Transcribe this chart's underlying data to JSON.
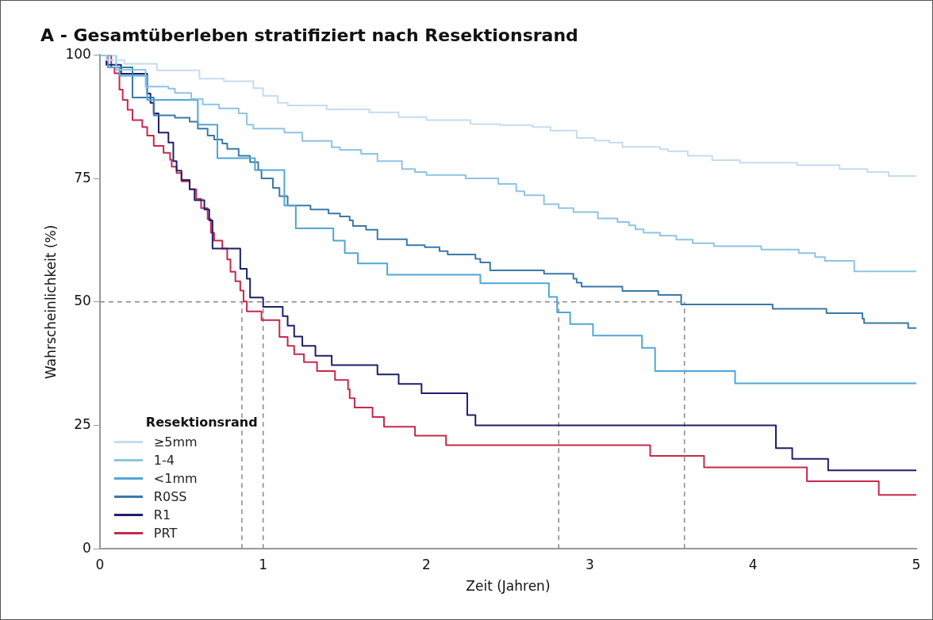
{
  "chart_data": {
    "type": "step",
    "title": "A - Gesamtüberleben stratifiziert nach Resektionsrand",
    "xlabel": "Zeit (Jahren)",
    "ylabel": "Wahrscheinlichkeit (%)",
    "legend_title": "Resektionsrand",
    "legend": "bottom left",
    "grid": false,
    "xlim": [
      0,
      5
    ],
    "xticks": [
      0,
      1,
      2,
      3,
      4,
      5
    ],
    "ylim": [
      0,
      100
    ],
    "yticks": [
      0,
      25,
      50,
      75,
      100
    ],
    "series": [
      {
        "name": "≥5mm",
        "color": "#c6dcee",
        "x": [
          0,
          0.04,
          0.15,
          0.35,
          0.61,
          0.76,
          0.94,
          1.0,
          1.09,
          1.15,
          1.39,
          1.65,
          1.83,
          2.0,
          2.27,
          2.45,
          2.65,
          2.76,
          2.92,
          3.03,
          3.12,
          3.2,
          3.43,
          3.48,
          3.6,
          3.75,
          3.92,
          4.27,
          4.53,
          4.7,
          4.83,
          5
        ],
        "values": [
          100,
          99,
          98.2,
          96.9,
          95.2,
          94.7,
          93.3,
          91.7,
          90.3,
          89.8,
          89.0,
          88.4,
          87.4,
          86.8,
          86.0,
          85.8,
          85.4,
          84.7,
          83.2,
          82.7,
          82.3,
          81.4,
          80.9,
          80.5,
          79.6,
          78.7,
          78.2,
          77.7,
          76.9,
          76.3,
          75.5,
          75.5
        ]
      },
      {
        "name": "1-4",
        "color": "#8ec4e2",
        "x": [
          0,
          0.1,
          0.28,
          0.42,
          0.46,
          0.56,
          0.63,
          0.73,
          0.85,
          0.9,
          0.94,
          1.13,
          1.24,
          1.42,
          1.47,
          1.6,
          1.7,
          1.85,
          1.93,
          2.0,
          2.24,
          2.44,
          2.55,
          2.6,
          2.72,
          2.81,
          2.9,
          3.05,
          3.17,
          3.24,
          3.28,
          3.33,
          3.43,
          3.53,
          3.63,
          3.76,
          4.05,
          4.28,
          4.38,
          4.44,
          4.62,
          5
        ],
        "values": [
          100,
          97,
          93.6,
          93.2,
          92.3,
          91.1,
          90.0,
          89.2,
          88.2,
          85.9,
          85.1,
          84.3,
          82.6,
          81.3,
          80.8,
          80.0,
          78.5,
          76.9,
          76.3,
          75.7,
          75.0,
          73.9,
          72.4,
          71.6,
          69.8,
          69.0,
          68.2,
          66.9,
          66.2,
          65.5,
          64.7,
          64.0,
          63.4,
          62.6,
          61.9,
          61.3,
          60.6,
          59.9,
          59.1,
          58.3,
          56.2,
          56.2
        ]
      },
      {
        "name": "<1mm",
        "color": "#4fa6d6",
        "x": [
          0,
          0.05,
          0.12,
          0.29,
          0.6,
          0.72,
          0.95,
          1.13,
          1.2,
          1.43,
          1.5,
          1.58,
          1.76,
          2.33,
          2.75,
          2.8,
          2.88,
          3.02,
          3.32,
          3.4,
          3.89,
          5
        ],
        "values": [
          100,
          97.5,
          95.8,
          90.9,
          85.9,
          79.1,
          76.7,
          69.5,
          64.9,
          62.4,
          59.9,
          57.8,
          55.5,
          53.8,
          51.0,
          47.9,
          45.5,
          43.2,
          40.7,
          36.0,
          33.5,
          33.5
        ]
      },
      {
        "name": "R0SS",
        "color": "#3b79a6",
        "x": [
          0,
          0.05,
          0.2,
          0.33,
          0.46,
          0.55,
          0.6,
          0.66,
          0.7,
          0.75,
          0.78,
          0.85,
          0.92,
          0.97,
          0.99,
          1.06,
          1.1,
          1.15,
          1.29,
          1.4,
          1.47,
          1.53,
          1.55,
          1.63,
          1.7,
          1.88,
          1.99,
          2.08,
          2.13,
          2.3,
          2.33,
          2.39,
          2.72,
          2.9,
          2.92,
          2.95,
          3.2,
          3.42,
          3.56,
          4.12,
          4.45,
          4.67,
          4.68,
          4.95,
          5
        ],
        "values": [
          100,
          97.5,
          91.4,
          87.8,
          87.3,
          86.5,
          85.1,
          83.7,
          82.9,
          82.1,
          81.0,
          79.6,
          78.3,
          76.7,
          75.0,
          73.1,
          71.4,
          69.5,
          68.7,
          67.9,
          67.3,
          66.5,
          65.4,
          64.6,
          62.7,
          61.5,
          61.1,
          60.3,
          59.6,
          58.7,
          58.0,
          56.4,
          55.7,
          54.7,
          53.9,
          53.1,
          52.2,
          51.4,
          49.5,
          48.6,
          47.7,
          46.6,
          45.7,
          44.7,
          44.7
        ]
      },
      {
        "name": "R1",
        "color": "#1e1f6b",
        "x": [
          0,
          0.04,
          0.13,
          0.29,
          0.31,
          0.33,
          0.36,
          0.42,
          0.45,
          0.47,
          0.5,
          0.55,
          0.58,
          0.64,
          0.67,
          0.69,
          0.86,
          0.9,
          0.92,
          1.0,
          1.12,
          1.15,
          1.19,
          1.24,
          1.32,
          1.42,
          1.7,
          1.83,
          1.97,
          2.25,
          2.3,
          4.14,
          4.24,
          4.46,
          5
        ],
        "values": [
          100,
          98,
          96.2,
          92.2,
          90.3,
          88.2,
          84.3,
          82.3,
          78.5,
          76.6,
          74.7,
          72.8,
          70.6,
          68.7,
          66.5,
          60.8,
          56.7,
          54.7,
          50.9,
          49.0,
          47.1,
          45.2,
          43.0,
          41.1,
          39.1,
          37.2,
          35.3,
          33.4,
          31.5,
          27.1,
          25.0,
          20.4,
          18.2,
          15.9,
          15.9
        ]
      },
      {
        "name": "PRT",
        "color": "#c8284b",
        "x": [
          0,
          0.07,
          0.09,
          0.12,
          0.14,
          0.17,
          0.2,
          0.26,
          0.29,
          0.33,
          0.39,
          0.43,
          0.44,
          0.47,
          0.5,
          0.55,
          0.59,
          0.62,
          0.66,
          0.68,
          0.7,
          0.75,
          0.78,
          0.8,
          0.83,
          0.86,
          0.88,
          0.9,
          0.99,
          1.1,
          1.15,
          1.19,
          1.25,
          1.33,
          1.44,
          1.52,
          1.53,
          1.56,
          1.67,
          1.74,
          1.93,
          2.12,
          3.37,
          3.7,
          4.33,
          4.77,
          5
        ],
        "values": [
          100,
          97.5,
          96.3,
          93.0,
          90.9,
          88.9,
          86.8,
          85.4,
          83.7,
          81.6,
          80.2,
          78.8,
          77.4,
          76.1,
          74.4,
          72.8,
          70.9,
          69.0,
          66.8,
          64.0,
          62.4,
          60.8,
          58.6,
          56.1,
          54.2,
          52.3,
          50.1,
          48.1,
          46.3,
          42.9,
          41.1,
          39.4,
          37.8,
          36.0,
          34.2,
          32.3,
          30.5,
          28.6,
          26.7,
          24.7,
          22.9,
          21.0,
          18.8,
          16.5,
          13.7,
          10.9,
          10.9
        ]
      }
    ],
    "ref_lines": [
      {
        "axis": "y",
        "value": 50,
        "color": "#888888",
        "line_style": "dashed"
      },
      {
        "axis": "x",
        "value": 0.87,
        "color": "#888888",
        "line_style": "dashed"
      },
      {
        "axis": "x",
        "value": 1.0,
        "color": "#888888",
        "line_style": "dashed"
      },
      {
        "axis": "x",
        "value": 2.81,
        "color": "#888888",
        "line_style": "dashed"
      },
      {
        "axis": "x",
        "value": 3.58,
        "color": "#888888",
        "line_style": "dashed"
      }
    ]
  }
}
